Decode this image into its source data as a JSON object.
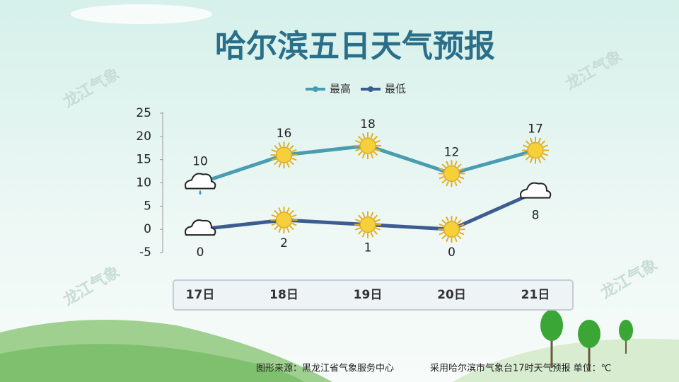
{
  "chart_data": {
    "type": "line",
    "title": "哈尔滨五日天气预报",
    "categories": [
      "17日",
      "18日",
      "19日",
      "20日",
      "21日"
    ],
    "series": [
      {
        "name": "最高",
        "color": "#4a9db0",
        "values": [
          10,
          16,
          18,
          12,
          17
        ]
      },
      {
        "name": "最低",
        "color": "#3d5c8f",
        "values": [
          0,
          2,
          1,
          0,
          8
        ]
      }
    ],
    "ylim": [
      -5,
      25
    ],
    "yticks": [
      -5,
      0,
      5,
      10,
      15,
      20,
      25
    ],
    "watermark": "龙江气象",
    "source": "图形来源：黑龙江省气象服务中心",
    "note": "采用哈尔滨市气象台17时天气预报 单位：℃"
  }
}
